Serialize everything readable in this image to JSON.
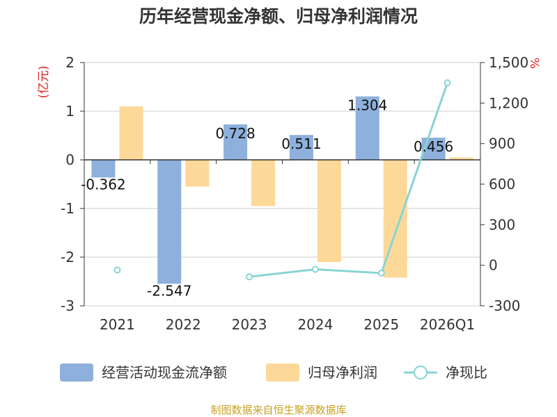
{
  "chart_data": {
    "type": "bar",
    "title": "历年经营现金净额、归母净利润情况",
    "categories": [
      "2021",
      "2022",
      "2023",
      "2024",
      "2025",
      "2026Q1"
    ],
    "series": [
      {
        "name": "经营活动现金流净额",
        "axis": "left",
        "type": "bar",
        "color": "#8eb0dc",
        "values": [
          -0.362,
          -2.547,
          0.728,
          0.511,
          1.304,
          0.456
        ],
        "labels": [
          "-0.362",
          "-2.547",
          "0.728",
          "0.511",
          "1.304",
          "0.456"
        ]
      },
      {
        "name": "归母净利润",
        "axis": "left",
        "type": "bar",
        "color": "#fdd999",
        "values": [
          1.1,
          -0.55,
          -0.95,
          -2.1,
          -2.42,
          0.05
        ]
      },
      {
        "name": "净现比",
        "axis": "right",
        "type": "line",
        "color": "#88d4d4",
        "values": [
          -35,
          null,
          -85,
          -30,
          -58,
          1350
        ]
      }
    ],
    "y_left": {
      "unit": "(亿元)",
      "ylim": [
        -3,
        2
      ],
      "ticks": [
        2,
        1,
        0,
        -1,
        -2,
        -3
      ],
      "tick_labels": [
        "2",
        "1",
        "0",
        "-1",
        "-2",
        "-3"
      ]
    },
    "y_right": {
      "unit": "%",
      "ylim": [
        -300,
        1500
      ],
      "ticks": [
        1500,
        1200,
        900,
        600,
        300,
        0,
        -300
      ],
      "tick_labels": [
        "1,500",
        "1,200",
        "900",
        "600",
        "300",
        "0",
        "-300"
      ]
    },
    "legend": {
      "position": "bottom"
    },
    "grid": true
  },
  "footer": {
    "source": "制图数据来自恒生聚源数据库"
  },
  "colors": {
    "unit_color": "#e02020",
    "source_color": "#c9a227",
    "axis": "#333333",
    "grid": "#cccccc"
  }
}
